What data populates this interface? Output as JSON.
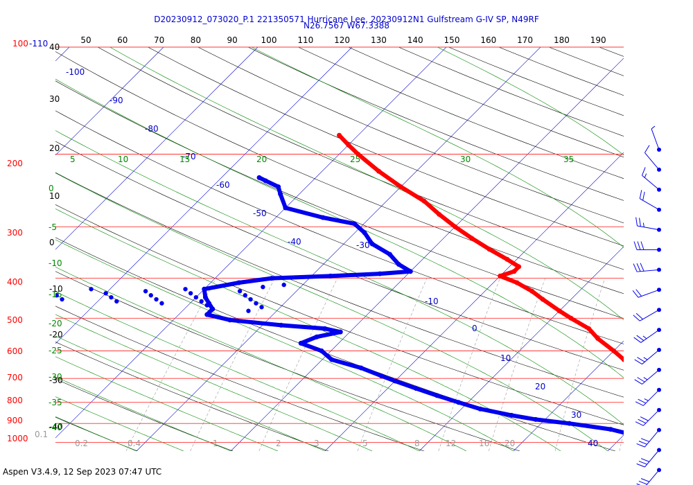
{
  "header": {
    "title_line1": "D20230912_073020_P.1 221350571 Hurricane Lee, 20230912N1 Gulfstream G-IV SP, N49RF",
    "title_line2": "N26.7567 W67.3388"
  },
  "footer": {
    "text": "Aspen V3.4.9, 12 Sep 2023  07:47 UTC"
  },
  "chart_data": {
    "type": "skew-t",
    "y_scale": "log pressure",
    "pressure_labels_hpa": [
      "100-110",
      "200",
      "300",
      "400",
      "500",
      "600",
      "700",
      "800",
      "900",
      "1000"
    ],
    "pressure_levels_hpa": [
      110,
      200,
      300,
      400,
      500,
      600,
      700,
      800,
      900,
      1000
    ],
    "top_axis_labels": [
      "50",
      "60",
      "70",
      "80",
      "90",
      "100",
      "110",
      "120",
      "130",
      "140",
      "150",
      "160",
      "170",
      "180",
      "190"
    ],
    "left_black_labels": [
      "40",
      "30",
      "20",
      "10",
      "0",
      "-10",
      "-20",
      "-30",
      "-40"
    ],
    "isotherm_labels_c": [
      "-100",
      "-90",
      "-80",
      "-70",
      "-60",
      "-50",
      "-40",
      "-30",
      "-10",
      "0",
      "10",
      "20",
      "30",
      "40"
    ],
    "moist_adiabat_labels": [
      "5",
      "10",
      "15",
      "20",
      "25",
      "30",
      "35"
    ],
    "left_green_labels": [
      "0",
      "-5",
      "-10",
      "-15",
      "-20",
      "-25",
      "-30",
      "-35",
      "-40"
    ],
    "mixing_ratio_labels": [
      "0.1",
      "0.2",
      "0.4",
      "1",
      "2",
      "3",
      "5",
      "8",
      "12",
      "16",
      "20"
    ],
    "temperature_profile": {
      "color": "#ff0000",
      "points": [
        {
          "p": 180,
          "t": -52
        },
        {
          "p": 190,
          "t": -50
        },
        {
          "p": 200,
          "t": -48
        },
        {
          "p": 220,
          "t": -44
        },
        {
          "p": 240,
          "t": -40
        },
        {
          "p": 260,
          "t": -36
        },
        {
          "p": 280,
          "t": -33
        },
        {
          "p": 300,
          "t": -30
        },
        {
          "p": 320,
          "t": -27
        },
        {
          "p": 340,
          "t": -24
        },
        {
          "p": 360,
          "t": -21
        },
        {
          "p": 375,
          "t": -19
        },
        {
          "p": 385,
          "t": -19
        },
        {
          "p": 395,
          "t": -20
        },
        {
          "p": 410,
          "t": -17.5
        },
        {
          "p": 430,
          "t": -15
        },
        {
          "p": 450,
          "t": -13
        },
        {
          "p": 480,
          "t": -10
        },
        {
          "p": 500,
          "t": -8
        },
        {
          "p": 530,
          "t": -5
        },
        {
          "p": 560,
          "t": -3
        },
        {
          "p": 600,
          "t": 0
        },
        {
          "p": 630,
          "t": 2
        },
        {
          "p": 660,
          "t": 4
        },
        {
          "p": 700,
          "t": 7
        },
        {
          "p": 740,
          "t": 9
        },
        {
          "p": 780,
          "t": 11
        },
        {
          "p": 800,
          "t": 12
        },
        {
          "p": 840,
          "t": 13
        },
        {
          "p": 880,
          "t": 15
        },
        {
          "p": 920,
          "t": 17
        },
        {
          "p": 960,
          "t": 21
        },
        {
          "p": 990,
          "t": 25
        },
        {
          "p": 1005,
          "t": 26
        }
      ]
    },
    "dewpoint_profile": {
      "color": "#0000ee",
      "points": [
        {
          "p": 228,
          "t": -56
        },
        {
          "p": 232,
          "t": -55
        },
        {
          "p": 240,
          "t": -53
        },
        {
          "p": 250,
          "t": -52
        },
        {
          "p": 270,
          "t": -50
        },
        {
          "p": 285,
          "t": -45
        },
        {
          "p": 295,
          "t": -41
        },
        {
          "p": 310,
          "t": -39
        },
        {
          "p": 330,
          "t": -37
        },
        {
          "p": 350,
          "t": -34
        },
        {
          "p": 370,
          "t": -32
        },
        {
          "p": 385,
          "t": -30
        },
        {
          "p": 390,
          "t": -33
        },
        {
          "p": 395,
          "t": -38
        },
        {
          "p": 400,
          "t": -44
        },
        {
          "p": 410,
          "t": -47
        },
        {
          "p": 425,
          "t": -50
        },
        {
          "p": 445,
          "t": -49
        },
        {
          "p": 460,
          "t": -48
        },
        {
          "p": 475,
          "t": -47
        },
        {
          "p": 490,
          "t": -47
        },
        {
          "p": 505,
          "t": -44
        },
        {
          "p": 520,
          "t": -38
        },
        {
          "p": 530,
          "t": -33
        },
        {
          "p": 540,
          "t": -31
        },
        {
          "p": 555,
          "t": -33
        },
        {
          "p": 575,
          "t": -34
        },
        {
          "p": 600,
          "t": -31
        },
        {
          "p": 630,
          "t": -29
        },
        {
          "p": 660,
          "t": -25
        },
        {
          "p": 690,
          "t": -22
        },
        {
          "p": 710,
          "t": -20
        },
        {
          "p": 740,
          "t": -17
        },
        {
          "p": 770,
          "t": -14
        },
        {
          "p": 800,
          "t": -11
        },
        {
          "p": 830,
          "t": -8
        },
        {
          "p": 860,
          "t": -4
        },
        {
          "p": 880,
          "t": -1
        },
        {
          "p": 900,
          "t": 3
        },
        {
          "p": 930,
          "t": 8
        },
        {
          "p": 960,
          "t": 11
        },
        {
          "p": 985,
          "t": 13
        },
        {
          "p": 1000,
          "t": 12
        }
      ]
    },
    "dewpoint_scatter": [
      {
        "p": 440,
        "t": -82
      },
      {
        "p": 440,
        "t": -78
      },
      {
        "p": 430,
        "t": -75
      },
      {
        "p": 425,
        "t": -72
      },
      {
        "p": 435,
        "t": -70
      },
      {
        "p": 445,
        "t": -69
      },
      {
        "p": 430,
        "t": -67
      },
      {
        "p": 440,
        "t": -65
      },
      {
        "p": 450,
        "t": -64
      },
      {
        "p": 425,
        "t": -62
      },
      {
        "p": 435,
        "t": -60
      },
      {
        "p": 445,
        "t": -59
      },
      {
        "p": 455,
        "t": -58
      },
      {
        "p": 430,
        "t": -56
      },
      {
        "p": 440,
        "t": -55
      },
      {
        "p": 450,
        "t": -54
      },
      {
        "p": 460,
        "t": -53
      },
      {
        "p": 425,
        "t": -52
      },
      {
        "p": 435,
        "t": -51
      },
      {
        "p": 445,
        "t": -50
      },
      {
        "p": 455,
        "t": -49
      },
      {
        "p": 465,
        "t": -48
      },
      {
        "p": 430,
        "t": -46
      },
      {
        "p": 440,
        "t": -45
      },
      {
        "p": 450,
        "t": -44
      },
      {
        "p": 460,
        "t": -43
      },
      {
        "p": 470,
        "t": -42
      },
      {
        "p": 480,
        "t": -43
      },
      {
        "p": 420,
        "t": -44
      },
      {
        "p": 415,
        "t": -42
      }
    ],
    "wind_barbs": [
      {
        "speed": 5,
        "direction": 340
      },
      {
        "speed": 10,
        "direction": 320
      },
      {
        "speed": 15,
        "direction": 310
      },
      {
        "speed": 20,
        "direction": 300
      },
      {
        "speed": 25,
        "direction": 280
      },
      {
        "speed": 30,
        "direction": 270
      },
      {
        "speed": 30,
        "direction": 265
      },
      {
        "speed": 20,
        "direction": 250
      },
      {
        "speed": 20,
        "direction": 240
      },
      {
        "speed": 25,
        "direction": 235
      },
      {
        "speed": 25,
        "direction": 230
      },
      {
        "speed": 25,
        "direction": 230
      },
      {
        "speed": 25,
        "direction": 225
      },
      {
        "speed": 30,
        "direction": 225
      },
      {
        "speed": 30,
        "direction": 220
      },
      {
        "speed": 30,
        "direction": 220
      },
      {
        "speed": 30,
        "direction": 220
      }
    ],
    "colors": {
      "isobar": "#ff3333",
      "isotherm": "#0000cc",
      "dry_adiabat": "#000000",
      "moist_adiabat": "#008800",
      "mixing_ratio": "#999999",
      "temperature": "#ff0000",
      "dewpoint": "#0000ee",
      "barb": "#0000ee"
    }
  }
}
